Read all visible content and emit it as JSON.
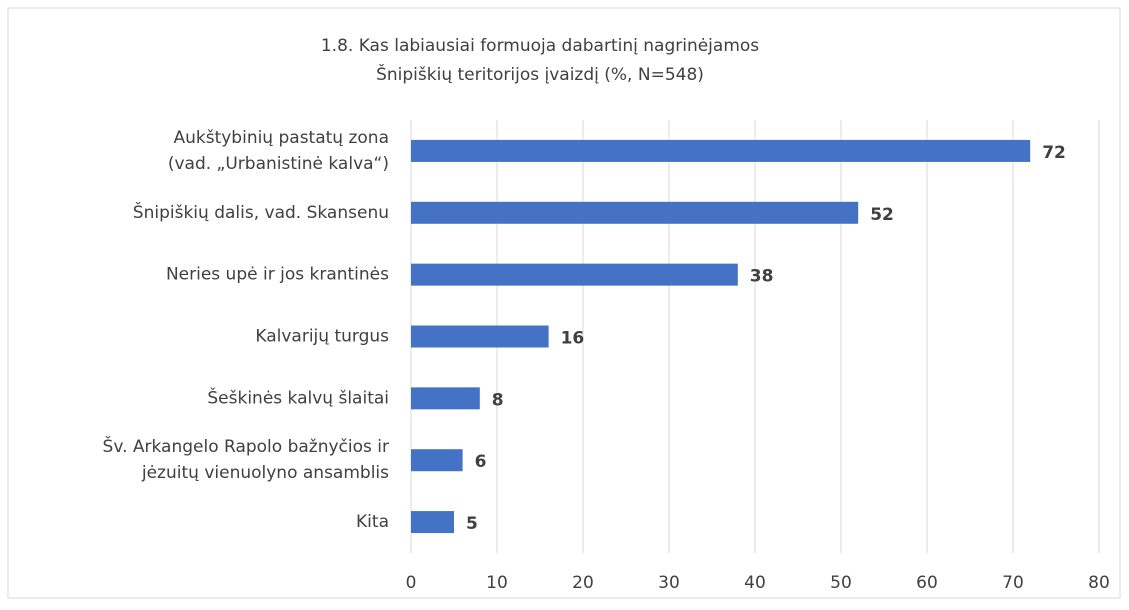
{
  "chart_data": {
    "type": "barh",
    "title": [
      "1.8. Kas labiausiai formuoja dabartinį nagrinėjamos",
      "Šnipiškių teritorijos įvaizdį (%, N=548)"
    ],
    "categories": [
      [
        "Aukštybinių pastatų zona",
        "(vad. „Urbanistinė kalva“)"
      ],
      [
        "Šnipiškių dalis, vad. Skansenu"
      ],
      [
        "Neries upė ir jos krantinės"
      ],
      [
        "Kalvarijų turgus"
      ],
      [
        "Šeškinės kalvų šlaitai"
      ],
      [
        "Šv. Arkangelo Rapolo bažnyčios ir",
        "jėzuitų vienuolyno ansamblis"
      ],
      [
        "Kita"
      ]
    ],
    "values": [
      72,
      52,
      38,
      16,
      8,
      6,
      5
    ],
    "color": "#4472c4",
    "xlim": [
      0,
      80
    ],
    "xticks": [
      0,
      10,
      20,
      30,
      40,
      50,
      60,
      70,
      80
    ],
    "grid": true
  }
}
